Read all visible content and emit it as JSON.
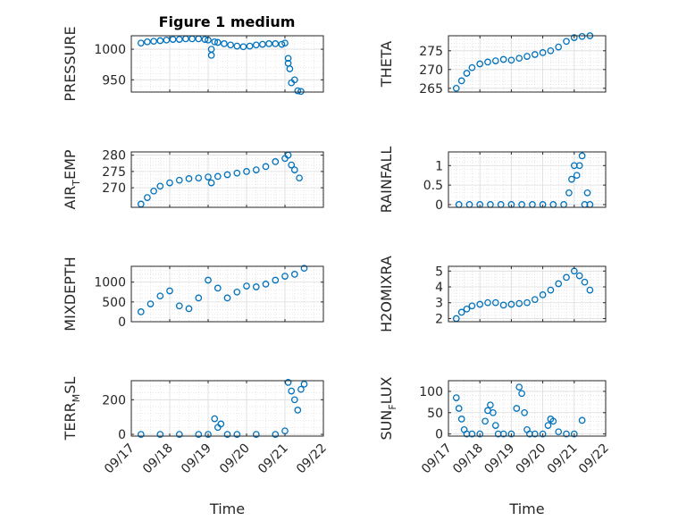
{
  "figure": {
    "title": "Figure 1 medium",
    "marker_color": "#0072BD",
    "grid": true,
    "x_axis": {
      "label": "Time",
      "range": [
        "2018-09-17",
        "2018-09-22"
      ],
      "tick_labels": [
        "09/17",
        "09/18",
        "09/19",
        "09/20",
        "09/21",
        "09/22"
      ]
    }
  },
  "chart_data": [
    {
      "type": "scatter",
      "ylabel": "PRESSURE",
      "ylim": [
        930,
        1022
      ],
      "yticks": [
        950,
        1000
      ],
      "x": [
        "09/17 06:00",
        "09/17 10:00",
        "09/17 14:00",
        "09/17 18:00",
        "09/17 22:00",
        "09/18 02:00",
        "09/18 06:00",
        "09/18 10:00",
        "09/18 14:00",
        "09/18 18:00",
        "09/18 22:00",
        "09/19 00:00",
        "09/19 02:00",
        "09/19 02:00",
        "09/19 04:00",
        "09/19 06:00",
        "09/19 10:00",
        "09/19 14:00",
        "09/19 18:00",
        "09/19 22:00",
        "09/20 02:00",
        "09/20 06:00",
        "09/20 10:00",
        "09/20 14:00",
        "09/20 18:00",
        "09/20 22:00",
        "09/21 00:00",
        "09/21 02:00",
        "09/21 02:00",
        "09/21 03:00",
        "09/21 04:00",
        "09/21 06:00",
        "09/21 08:00",
        "09/21 10:00"
      ],
      "y": [
        1010,
        1012,
        1013,
        1014,
        1015,
        1016,
        1016,
        1017,
        1017,
        1017,
        1016,
        1015,
        1000,
        990,
        1012,
        1011,
        1009,
        1007,
        1005,
        1004,
        1005,
        1007,
        1008,
        1009,
        1009,
        1008,
        1010,
        985,
        977,
        968,
        945,
        950,
        932,
        931
      ]
    },
    {
      "type": "scatter",
      "ylabel": "THETA",
      "ylim": [
        264,
        279
      ],
      "yticks": [
        265,
        270,
        275
      ],
      "x": [
        "09/17 06:00",
        "09/17 10:00",
        "09/17 14:00",
        "09/17 18:00",
        "09/18 00:00",
        "09/18 06:00",
        "09/18 12:00",
        "09/18 18:00",
        "09/19 00:00",
        "09/19 06:00",
        "09/19 12:00",
        "09/19 18:00",
        "09/20 00:00",
        "09/20 06:00",
        "09/20 12:00",
        "09/20 18:00",
        "09/21 00:00",
        "09/21 06:00",
        "09/21 12:00"
      ],
      "y": [
        265,
        267,
        269,
        270.5,
        271.5,
        272,
        272.3,
        272.7,
        272.5,
        273,
        273.5,
        274,
        274.5,
        275,
        276,
        277.5,
        278.5,
        278.8,
        279
      ]
    },
    {
      "type": "scatter",
      "ylabel": "AIR_TEMP",
      "ylabel_parts": [
        "AIR",
        "T",
        "EMP"
      ],
      "ylim": [
        264,
        281
      ],
      "yticks": [
        270,
        275,
        280
      ],
      "x": [
        "09/17 06:00",
        "09/17 10:00",
        "09/17 14:00",
        "09/17 18:00",
        "09/18 00:00",
        "09/18 06:00",
        "09/18 12:00",
        "09/18 18:00",
        "09/19 00:00",
        "09/19 02:00",
        "09/19 06:00",
        "09/19 12:00",
        "09/19 18:00",
        "09/20 00:00",
        "09/20 06:00",
        "09/20 12:00",
        "09/20 18:00",
        "09/21 00:00",
        "09/21 02:00",
        "09/21 04:00",
        "09/21 06:00",
        "09/21 09:00"
      ],
      "y": [
        265,
        267,
        269,
        270.5,
        271.5,
        272.3,
        272.8,
        273,
        273.3,
        271.5,
        273.5,
        274,
        274.5,
        275,
        275.5,
        276.5,
        278,
        279,
        280,
        277,
        275.5,
        273
      ]
    },
    {
      "type": "scatter",
      "ylabel": "RAINFALL",
      "ylim": [
        -0.07,
        1.35
      ],
      "yticks": [
        0,
        0.5,
        1
      ],
      "x": [
        "09/17 08:00",
        "09/17 16:00",
        "09/18 00:00",
        "09/18 08:00",
        "09/18 16:00",
        "09/19 00:00",
        "09/19 08:00",
        "09/19 16:00",
        "09/20 00:00",
        "09/20 08:00",
        "09/20 16:00",
        "09/20 20:00",
        "09/20 22:00",
        "09/21 00:00",
        "09/21 02:00",
        "09/21 04:00",
        "09/21 06:00",
        "09/21 08:00",
        "09/21 10:00",
        "09/21 12:00"
      ],
      "y": [
        0,
        0,
        0,
        0,
        0,
        0,
        0,
        0,
        0,
        0,
        0,
        0.3,
        0.65,
        1,
        0.75,
        1,
        1.25,
        0,
        0.3,
        0
      ]
    },
    {
      "type": "scatter",
      "ylabel": "MIXDEPTH",
      "ylim": [
        0,
        1400
      ],
      "yticks": [
        0,
        500,
        1000
      ],
      "x": [
        "09/17 06:00",
        "09/17 12:00",
        "09/17 18:00",
        "09/18 00:00",
        "09/18 06:00",
        "09/18 12:00",
        "09/18 18:00",
        "09/19 00:00",
        "09/19 06:00",
        "09/19 12:00",
        "09/19 18:00",
        "09/20 00:00",
        "09/20 06:00",
        "09/20 12:00",
        "09/20 18:00",
        "09/21 00:00",
        "09/21 06:00",
        "09/21 12:00"
      ],
      "y": [
        250,
        450,
        650,
        780,
        400,
        330,
        600,
        1050,
        850,
        600,
        750,
        900,
        880,
        950,
        1050,
        1150,
        1200,
        1350
      ]
    },
    {
      "type": "scatter",
      "ylabel": "H2OMIXRA",
      "ylim": [
        1.8,
        5.3
      ],
      "yticks": [
        2,
        3,
        4,
        5
      ],
      "x": [
        "09/17 06:00",
        "09/17 10:00",
        "09/17 14:00",
        "09/17 18:00",
        "09/18 00:00",
        "09/18 06:00",
        "09/18 12:00",
        "09/18 18:00",
        "09/19 00:00",
        "09/19 06:00",
        "09/19 12:00",
        "09/19 18:00",
        "09/20 00:00",
        "09/20 06:00",
        "09/20 12:00",
        "09/20 18:00",
        "09/21 00:00",
        "09/21 04:00",
        "09/21 08:00",
        "09/21 12:00"
      ],
      "y": [
        2,
        2.4,
        2.6,
        2.8,
        2.9,
        3,
        3,
        2.85,
        2.9,
        2.95,
        3,
        3.2,
        3.5,
        3.8,
        4.2,
        4.6,
        5,
        4.7,
        4.3,
        3.8
      ]
    },
    {
      "type": "scatter",
      "ylabel": "TERR_MSL",
      "ylabel_parts": [
        "TERR",
        "M",
        "SL"
      ],
      "ylim": [
        -10,
        310
      ],
      "yticks": [
        0,
        200
      ],
      "x": [
        "09/17 06:00",
        "09/17 18:00",
        "09/18 06:00",
        "09/18 18:00",
        "09/19 00:00",
        "09/19 04:00",
        "09/19 06:00",
        "09/19 08:00",
        "09/19 12:00",
        "09/19 18:00",
        "09/20 06:00",
        "09/20 18:00",
        "09/21 00:00",
        "09/21 02:00",
        "09/21 04:00",
        "09/21 06:00",
        "09/21 08:00",
        "09/21 10:00",
        "09/21 12:00"
      ],
      "y": [
        0,
        0,
        0,
        0,
        0,
        90,
        40,
        60,
        0,
        0,
        0,
        0,
        20,
        300,
        250,
        200,
        140,
        260,
        290
      ]
    },
    {
      "type": "scatter",
      "ylabel": "SUN_FLUX",
      "ylabel_parts": [
        "SUN",
        "F",
        "LUX"
      ],
      "ylim": [
        -5,
        125
      ],
      "yticks": [
        0,
        50,
        100
      ],
      "x": [
        "09/17 06:00",
        "09/17 08:00",
        "09/17 10:00",
        "09/17 12:00",
        "09/17 14:00",
        "09/17 18:00",
        "09/18 00:00",
        "09/18 04:00",
        "09/18 06:00",
        "09/18 08:00",
        "09/18 10:00",
        "09/18 12:00",
        "09/18 14:00",
        "09/18 18:00",
        "09/19 00:00",
        "09/19 04:00",
        "09/19 06:00",
        "09/19 08:00",
        "09/19 10:00",
        "09/19 12:00",
        "09/19 14:00",
        "09/19 18:00",
        "09/20 00:00",
        "09/20 04:00",
        "09/20 06:00",
        "09/20 08:00",
        "09/20 12:00",
        "09/20 18:00",
        "09/21 00:00",
        "09/21 06:00"
      ],
      "y": [
        85,
        60,
        35,
        10,
        0,
        0,
        0,
        30,
        55,
        68,
        50,
        20,
        0,
        0,
        0,
        60,
        110,
        95,
        50,
        10,
        0,
        0,
        0,
        20,
        35,
        30,
        5,
        0,
        0,
        32
      ]
    }
  ]
}
